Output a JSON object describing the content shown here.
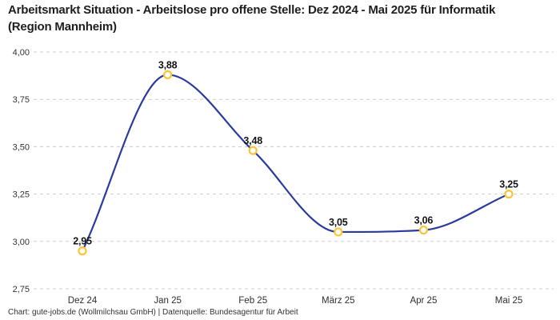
{
  "title": "Arbeitsmarkt Situation - Arbeitslose pro offene Stelle: Dez 2024 - Mai 2025 für Informatik (Region Mannheim)",
  "footer": "Chart: gute-jobs.de (Wollmilchsau GmbH) | Datenquelle: Bundesagentur für Arbeit",
  "chart_data": {
    "type": "line",
    "title": "Arbeitsmarkt Situation - Arbeitslose pro offene Stelle: Dez 2024 - Mai 2025 für Informatik (Region Mannheim)",
    "categories": [
      "Dez 24",
      "Jan 25",
      "Feb 25",
      "März 25",
      "Apr 25",
      "Mai 25"
    ],
    "values": [
      2.95,
      3.88,
      3.48,
      3.05,
      3.06,
      3.25
    ],
    "value_labels": [
      "2,95",
      "3,88",
      "3,48",
      "3,05",
      "3,06",
      "3,25"
    ],
    "xlabel": "",
    "ylabel": "",
    "ylim": [
      2.75,
      4.0
    ],
    "ytick_step": 0.25,
    "ytick_labels": [
      "4,00",
      "3,75",
      "3,50",
      "3,25",
      "3,00",
      "2,75"
    ],
    "grid": "horizontal-dashed",
    "legend": "none",
    "smooth": true,
    "colors": {
      "line": "#2a3b9c",
      "marker_ring": "#fcc434",
      "marker_fill": "#ffffff",
      "gridline": "#cccccc",
      "tick_text": "#333333",
      "point_label_text": "#141414",
      "background": "#ffffff"
    }
  }
}
